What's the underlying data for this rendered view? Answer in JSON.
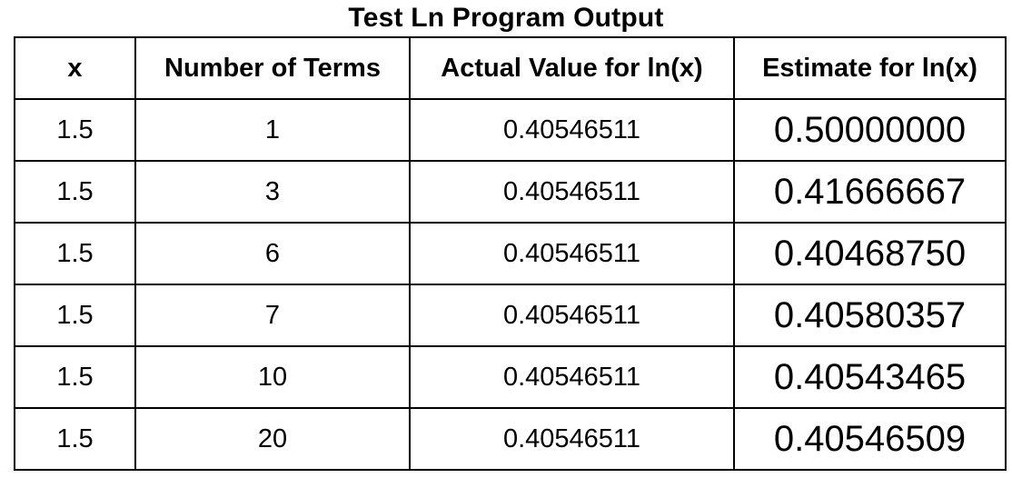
{
  "title": "Test Ln Program Output",
  "table": {
    "headers": [
      "x",
      "Number of Terms",
      "Actual Value for ln(x)",
      "Estimate for ln(x)"
    ],
    "rows": [
      [
        "1.5",
        "1",
        "0.40546511",
        "0.50000000"
      ],
      [
        "1.5",
        "3",
        "0.40546511",
        "0.41666667"
      ],
      [
        "1.5",
        "6",
        "0.40546511",
        "0.40468750"
      ],
      [
        "1.5",
        "7",
        "0.40546511",
        "0.40580357"
      ],
      [
        "1.5",
        "10",
        "0.40546511",
        "0.40543465"
      ],
      [
        "1.5",
        "20",
        "0.40546511",
        "0.40546509"
      ]
    ]
  }
}
